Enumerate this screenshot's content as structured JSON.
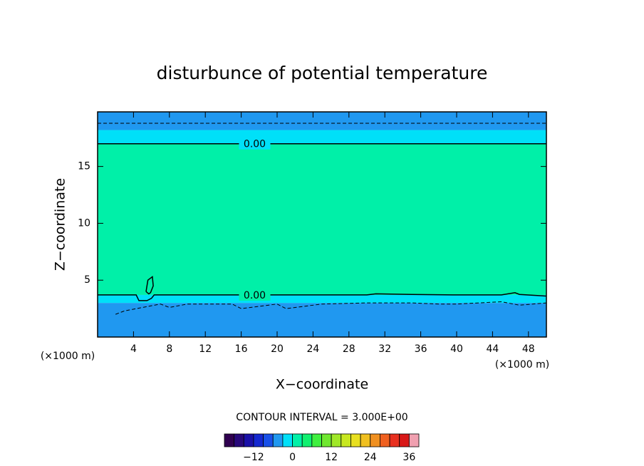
{
  "chart_data": {
    "type": "contour",
    "title": "disturbunce of potential temperature",
    "x_label": "X−coordinate",
    "y_label": "Z−coordinate",
    "x_unit": "(×1000 m)",
    "y_unit": "(×1000 m)",
    "contour_interval_label": "CONTOUR INTERVAL = 3.000E+00",
    "xlim": [
      0,
      50
    ],
    "ylim": [
      0,
      19.8
    ],
    "xticks": [
      4,
      8,
      12,
      16,
      20,
      24,
      28,
      32,
      36,
      40,
      44,
      48
    ],
    "yticks": [
      5,
      10,
      15
    ],
    "layers": {
      "z": [
        0,
        3.0,
        3.7,
        17.0,
        18.2,
        19.8
      ],
      "values": [
        -4,
        -1.5,
        1.5,
        -1.5,
        -4
      ]
    },
    "contours": [
      {
        "level": 0,
        "label": "0.00",
        "x": [
          0,
          50
        ],
        "z": [
          17.0,
          17.0
        ]
      },
      {
        "level": -3,
        "x": [
          0,
          50
        ],
        "z": [
          18.8,
          18.8
        ]
      },
      {
        "level": 0,
        "label": "0.00",
        "x": [
          0,
          4.3,
          4.6,
          5.5,
          6.0,
          6.3,
          10,
          20,
          30,
          31,
          35,
          40,
          45,
          46.5,
          47,
          50
        ],
        "z": [
          3.7,
          3.7,
          3.2,
          3.2,
          3.4,
          3.7,
          3.7,
          3.7,
          3.7,
          3.8,
          3.75,
          3.7,
          3.7,
          3.9,
          3.75,
          3.6
        ]
      },
      {
        "level": -3,
        "x": [
          2,
          3,
          5,
          7,
          8,
          10,
          15,
          16,
          20,
          21,
          25,
          30,
          35,
          38,
          40,
          45,
          47,
          50
        ],
        "z": [
          2.0,
          2.3,
          2.6,
          2.9,
          2.6,
          2.9,
          2.9,
          2.5,
          2.9,
          2.5,
          2.9,
          3.0,
          3.0,
          2.9,
          2.9,
          3.1,
          2.8,
          3.0
        ]
      },
      {
        "level": 3,
        "x": [
          5.4,
          5.6,
          6.1,
          6.2,
          5.9,
          5.7,
          5.4
        ],
        "z": [
          4.0,
          5.0,
          5.3,
          4.5,
          3.9,
          3.8,
          4.0
        ]
      }
    ],
    "colorbar": {
      "bounds": [
        -21,
        -18,
        -15,
        -12,
        -9,
        -6,
        -3,
        0,
        3,
        6,
        9,
        12,
        15,
        18,
        21,
        24,
        27,
        30,
        33,
        36,
        39
      ],
      "colors": [
        "#300050",
        "#28087a",
        "#1a10a8",
        "#1428d0",
        "#1850e8",
        "#2098f0",
        "#00e0f8",
        "#00f0a8",
        "#10f070",
        "#40f040",
        "#70e830",
        "#a0e828",
        "#c8e820",
        "#e8e020",
        "#f0c020",
        "#f09020",
        "#f06020",
        "#e83020",
        "#d81818",
        "#f0a0b0"
      ],
      "ticks": [
        {
          "value": -12,
          "label": "−12"
        },
        0,
        12,
        24,
        36
      ]
    }
  }
}
